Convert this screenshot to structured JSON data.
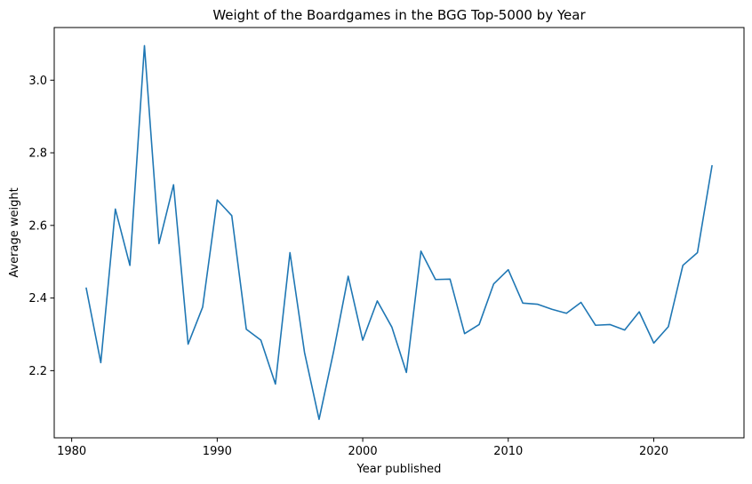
{
  "chart_data": {
    "type": "line",
    "title": "Weight of the Boardgames in the BGG Top-5000 by Year",
    "xlabel": "Year published",
    "ylabel": "Average weight",
    "xlim": [
      1978.8,
      2026.2
    ],
    "ylim": [
      2.015,
      3.145
    ],
    "xticks": [
      1980,
      1990,
      2000,
      2010,
      2020
    ],
    "xtick_labels": [
      "1980",
      "1990",
      "2000",
      "2010",
      "2020"
    ],
    "yticks": [
      2.2,
      2.4,
      2.6,
      2.8,
      3.0
    ],
    "ytick_labels": [
      "2.2",
      "2.4",
      "2.6",
      "2.8",
      "3.0"
    ],
    "grid": false,
    "legend": "none",
    "series": [
      {
        "color": "#1f77b4",
        "x": [
          1981,
          1982,
          1983,
          1984,
          1985,
          1986,
          1987,
          1988,
          1989,
          1990,
          1991,
          1992,
          1993,
          1994,
          1995,
          1996,
          1997,
          1998,
          1999,
          2000,
          2001,
          2002,
          2003,
          2004,
          2005,
          2006,
          2007,
          2008,
          2009,
          2010,
          2011,
          2012,
          2013,
          2014,
          2015,
          2016,
          2017,
          2018,
          2019,
          2020,
          2021,
          2022,
          2023,
          2024
        ],
        "y": [
          2.427,
          2.222,
          2.645,
          2.49,
          3.095,
          2.55,
          2.712,
          2.273,
          2.375,
          2.67,
          2.627,
          2.314,
          2.284,
          2.163,
          2.525,
          2.25,
          2.066,
          2.253,
          2.46,
          2.284,
          2.392,
          2.32,
          2.195,
          2.529,
          2.451,
          2.452,
          2.302,
          2.327,
          2.439,
          2.478,
          2.386,
          2.383,
          2.369,
          2.358,
          2.388,
          2.325,
          2.327,
          2.312,
          2.362,
          2.276,
          2.321,
          2.49,
          2.525,
          2.764
        ]
      }
    ]
  }
}
